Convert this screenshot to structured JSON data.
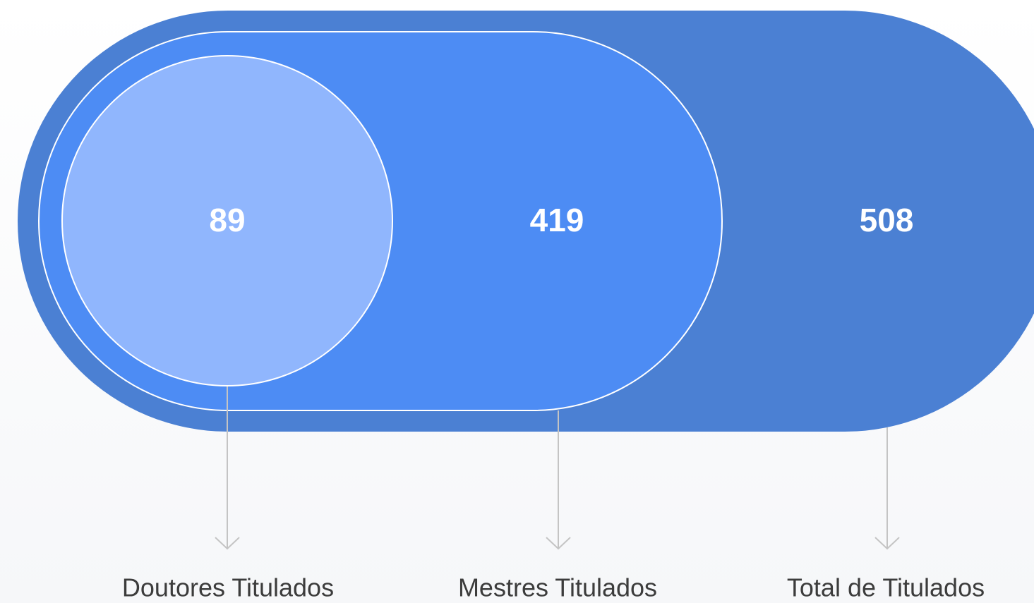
{
  "items": [
    {
      "value": 89,
      "label": "Doutores Titulados"
    },
    {
      "value": 419,
      "label": "Mestres Titulados"
    },
    {
      "value": 508,
      "label": "Total de Titulados"
    }
  ]
}
